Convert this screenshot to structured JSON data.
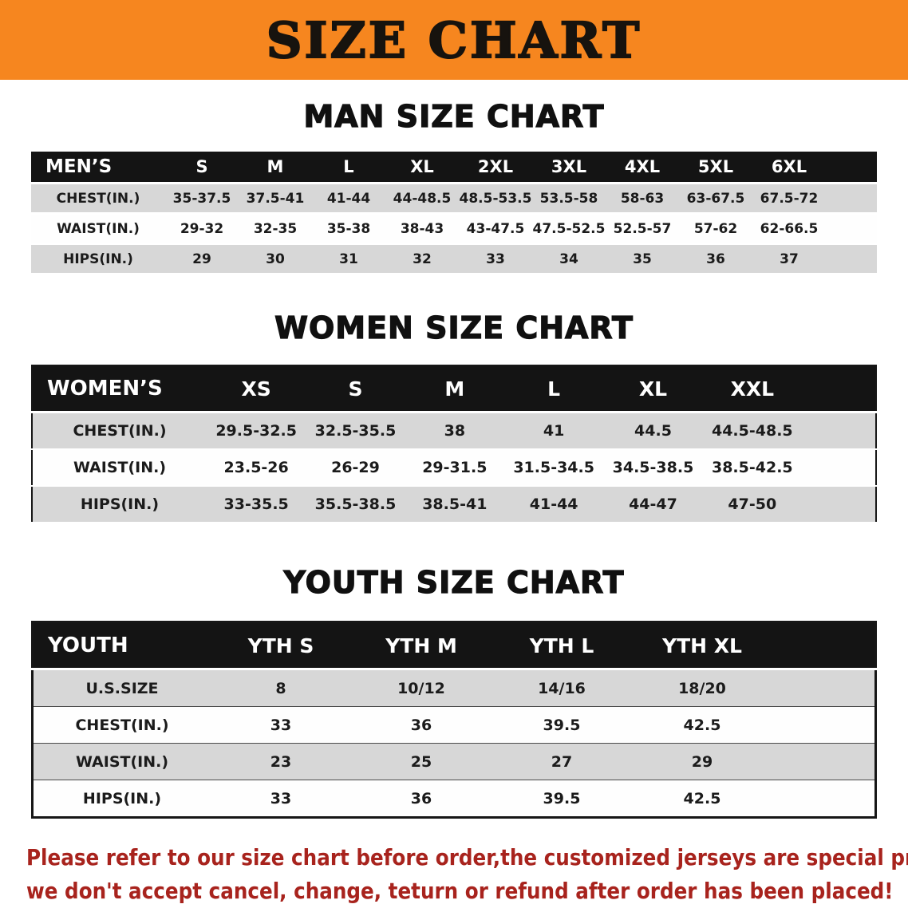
{
  "banner": {
    "title": "SIZE CHART"
  },
  "colors": {
    "banner_bg": "#f6861f",
    "header_bg": "#141414",
    "stripe": "#d7d7d7",
    "notice_text": "#a8231d"
  },
  "sections": [
    {
      "key": "men",
      "heading": "MAN SIZE CHART",
      "category_label": "MEN’S",
      "columns": [
        "S",
        "M",
        "L",
        "XL",
        "2XL",
        "3XL",
        "4XL",
        "5XL",
        "6XL"
      ],
      "rows": [
        {
          "label": "CHEST(IN.)",
          "values": [
            "35-37.5",
            "37.5-41",
            "41-44",
            "44-48.5",
            "48.5-53.5",
            "53.5-58",
            "58-63",
            "63-67.5",
            "67.5-72"
          ]
        },
        {
          "label": "WAIST(IN.)",
          "values": [
            "29-32",
            "32-35",
            "35-38",
            "38-43",
            "43-47.5",
            "47.5-52.5",
            "52.5-57",
            "57-62",
            "62-66.5"
          ]
        },
        {
          "label": "HIPS(IN.)",
          "values": [
            "29",
            "30",
            "31",
            "32",
            "33",
            "34",
            "35",
            "36",
            "37"
          ]
        }
      ]
    },
    {
      "key": "women",
      "heading": "WOMEN SIZE CHART",
      "category_label": "WOMEN’S",
      "columns": [
        "XS",
        "S",
        "M",
        "L",
        "XL",
        "XXL"
      ],
      "rows": [
        {
          "label": "CHEST(IN.)",
          "values": [
            "29.5-32.5",
            "32.5-35.5",
            "38",
            "41",
            "44.5",
            "44.5-48.5"
          ]
        },
        {
          "label": "WAIST(IN.)",
          "values": [
            "23.5-26",
            "26-29",
            "29-31.5",
            "31.5-34.5",
            "34.5-38.5",
            "38.5-42.5"
          ]
        },
        {
          "label": "HIPS(IN.)",
          "values": [
            "33-35.5",
            "35.5-38.5",
            "38.5-41",
            "41-44",
            "44-47",
            "47-50"
          ]
        }
      ]
    },
    {
      "key": "youth",
      "heading": "YOUTH SIZE CHART",
      "category_label": "YOUTH",
      "columns": [
        "YTH S",
        "YTH M",
        "YTH L",
        "YTH XL"
      ],
      "rows": [
        {
          "label": "U.S.SIZE",
          "values": [
            "8",
            "10/12",
            "14/16",
            "18/20"
          ]
        },
        {
          "label": "CHEST(IN.)",
          "values": [
            "33",
            "36",
            "39.5",
            "42.5"
          ]
        },
        {
          "label": "WAIST(IN.)",
          "values": [
            "23",
            "25",
            "27",
            "29"
          ]
        },
        {
          "label": "HIPS(IN.)",
          "values": [
            "33",
            "36",
            "39.5",
            "42.5"
          ]
        }
      ]
    }
  ],
  "footer": {
    "line1": "Please refer to our size chart before order,the customized jerseys are special products,",
    "line2": "we don't accept cancel, change, teturn or refund after order has been placed!"
  }
}
